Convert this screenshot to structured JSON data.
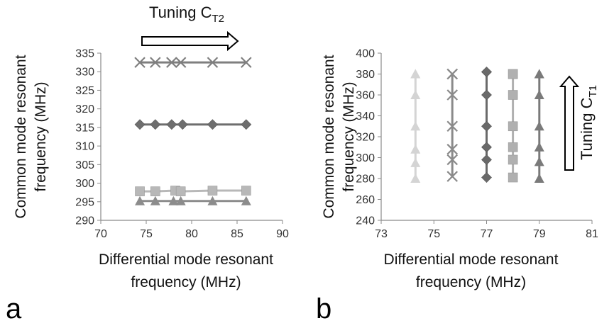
{
  "chart_data": [
    {
      "type": "scatter",
      "panel_label": "a",
      "xlabel": [
        "Differential mode resonant",
        "frequency (MHz)"
      ],
      "ylabel": [
        "Common mode resonant",
        "frequency (MHz)"
      ],
      "xlim": [
        70,
        90
      ],
      "ylim": [
        290,
        335
      ],
      "x_ticks": [
        "70",
        "75",
        "80",
        "85",
        "90"
      ],
      "y_ticks": [
        "290",
        "295",
        "300",
        "305",
        "310",
        "315",
        "320",
        "325",
        "330",
        "335"
      ],
      "annotation": {
        "text": "Tuning C",
        "subscript": "T2",
        "arrow": "right"
      },
      "series": [
        {
          "marker": "x",
          "color": "#7f7f7f",
          "x": [
            74.3,
            76.0,
            77.8,
            78.8,
            82.3,
            86.0
          ],
          "y": [
            332.5,
            332.5,
            332.5,
            332.5,
            332.5,
            332.5
          ]
        },
        {
          "marker": "diamond",
          "color": "#6e6e6e",
          "x": [
            74.3,
            76.0,
            77.8,
            79.0,
            82.3,
            86.0
          ],
          "y": [
            315.8,
            315.8,
            315.8,
            315.8,
            315.8,
            315.8
          ]
        },
        {
          "marker": "square",
          "color": "#b8b8b8",
          "x": [
            74.3,
            76.0,
            78.2,
            78.8,
            82.3,
            86.0
          ],
          "y": [
            297.8,
            297.8,
            298.0,
            297.8,
            298.0,
            298.0
          ]
        },
        {
          "marker": "triangle",
          "color": "#8c8c8c",
          "x": [
            74.3,
            76.0,
            78.0,
            78.8,
            82.3,
            86.0
          ],
          "y": [
            295.2,
            295.2,
            295.2,
            295.2,
            295.2,
            295.2
          ]
        }
      ]
    },
    {
      "type": "scatter",
      "panel_label": "b",
      "xlabel": [
        "Differential mode resonant",
        "frequency (MHz)"
      ],
      "ylabel": [
        "Common mode resonant",
        "frequency (MHz)"
      ],
      "xlim": [
        73,
        81
      ],
      "ylim": [
        240,
        400
      ],
      "x_ticks": [
        "73",
        "75",
        "77",
        "79",
        "81"
      ],
      "y_ticks": [
        "240",
        "260",
        "280",
        "300",
        "320",
        "340",
        "360",
        "380",
        "400"
      ],
      "annotation": {
        "text": "Tuning C",
        "subscript": "T1",
        "arrow": "up"
      },
      "series": [
        {
          "marker": "triangle",
          "color": "#d4d4d4",
          "x": [
            74.3,
            74.3,
            74.3,
            74.3,
            74.3,
            74.3,
            74.3
          ],
          "y": [
            280,
            295,
            308,
            330,
            360,
            380,
            380
          ]
        },
        {
          "marker": "x",
          "color": "#8a8a8a",
          "x": [
            75.7,
            75.7,
            75.7,
            75.7,
            75.7,
            75.7,
            75.7
          ],
          "y": [
            282,
            298,
            308,
            330,
            360,
            380,
            380
          ]
        },
        {
          "marker": "diamond",
          "color": "#6a6a6a",
          "x": [
            77.0,
            77.0,
            77.0,
            77.0,
            77.0,
            77.0,
            77.0
          ],
          "y": [
            281,
            298,
            310,
            330,
            360,
            382,
            382
          ]
        },
        {
          "marker": "square",
          "color": "#b0b0b0",
          "x": [
            78.0,
            78.0,
            78.0,
            78.0,
            78.0,
            78.0,
            78.0
          ],
          "y": [
            281,
            298,
            310,
            330,
            360,
            380,
            380
          ]
        },
        {
          "marker": "triangle",
          "color": "#7a7a7a",
          "x": [
            79.0,
            79.0,
            79.0,
            79.0,
            79.0,
            79.0,
            79.0
          ],
          "y": [
            280,
            296,
            310,
            330,
            360,
            380,
            380
          ]
        }
      ]
    }
  ]
}
